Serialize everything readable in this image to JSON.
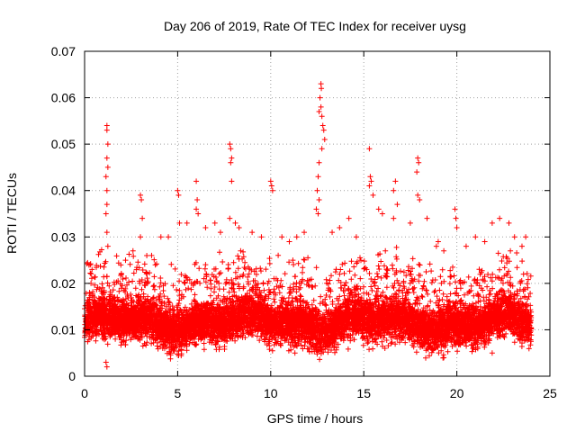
{
  "chart_data": {
    "type": "scatter",
    "title": "Day 206 of 2019, Rate Of TEC Index for receiver uysg",
    "xlabel": "GPS time / hours",
    "ylabel": "ROTI / TECUs",
    "xlim": [
      0,
      25
    ],
    "ylim": [
      0,
      0.07
    ],
    "xticks": [
      0,
      5,
      10,
      15,
      20,
      25
    ],
    "yticks": [
      0,
      0.01,
      0.02,
      0.03,
      0.04,
      0.05,
      0.06,
      0.07
    ],
    "xtick_labels": [
      "0",
      "5",
      "10",
      "15",
      "20",
      "25"
    ],
    "ytick_labels": [
      "0",
      "0.01",
      "0.02",
      "0.03",
      "0.04",
      "0.05",
      "0.06",
      "0.07"
    ],
    "grid": true,
    "marker": "+",
    "color": "#ff0000",
    "series": [
      {
        "name": "ROTI",
        "points": [
          [
            1.2,
            0.054
          ],
          [
            1.2,
            0.053
          ],
          [
            1.25,
            0.05
          ],
          [
            1.2,
            0.047
          ],
          [
            1.25,
            0.045
          ],
          [
            1.15,
            0.043
          ],
          [
            1.2,
            0.04
          ],
          [
            1.2,
            0.037
          ],
          [
            1.15,
            0.035
          ],
          [
            1.2,
            0.031
          ],
          [
            1.25,
            0.028
          ],
          [
            1.2,
            0.002
          ],
          [
            1.15,
            0.003
          ],
          [
            0.3,
            0.024
          ],
          [
            0.4,
            0.023
          ],
          [
            2.2,
            0.025
          ],
          [
            2.6,
            0.027
          ],
          [
            3.0,
            0.039
          ],
          [
            3.05,
            0.038
          ],
          [
            3.1,
            0.034
          ],
          [
            3.0,
            0.03
          ],
          [
            3.6,
            0.026
          ],
          [
            3.8,
            0.024
          ],
          [
            4.1,
            0.03
          ],
          [
            4.5,
            0.03
          ],
          [
            5.0,
            0.04
          ],
          [
            5.05,
            0.039
          ],
          [
            5.1,
            0.033
          ],
          [
            5.5,
            0.033
          ],
          [
            6.0,
            0.042
          ],
          [
            6.05,
            0.038
          ],
          [
            6.0,
            0.036
          ],
          [
            6.1,
            0.035
          ],
          [
            6.5,
            0.032
          ],
          [
            7.0,
            0.033
          ],
          [
            7.3,
            0.031
          ],
          [
            7.8,
            0.05
          ],
          [
            7.85,
            0.049
          ],
          [
            7.9,
            0.047
          ],
          [
            7.85,
            0.046
          ],
          [
            7.9,
            0.042
          ],
          [
            7.8,
            0.034
          ],
          [
            8.1,
            0.033
          ],
          [
            8.3,
            0.032
          ],
          [
            9.0,
            0.031
          ],
          [
            9.5,
            0.03
          ],
          [
            10.0,
            0.042
          ],
          [
            10.05,
            0.041
          ],
          [
            10.1,
            0.04
          ],
          [
            10.6,
            0.03
          ],
          [
            11.0,
            0.029
          ],
          [
            11.4,
            0.03
          ],
          [
            11.8,
            0.031
          ],
          [
            12.7,
            0.063
          ],
          [
            12.72,
            0.062
          ],
          [
            12.65,
            0.06
          ],
          [
            12.7,
            0.058
          ],
          [
            12.6,
            0.057
          ],
          [
            12.75,
            0.056
          ],
          [
            12.8,
            0.054
          ],
          [
            12.85,
            0.053
          ],
          [
            12.9,
            0.051
          ],
          [
            12.75,
            0.049
          ],
          [
            12.6,
            0.046
          ],
          [
            12.55,
            0.043
          ],
          [
            12.5,
            0.04
          ],
          [
            12.6,
            0.038
          ],
          [
            12.45,
            0.036
          ],
          [
            12.55,
            0.035
          ],
          [
            13.3,
            0.031
          ],
          [
            13.7,
            0.032
          ],
          [
            14.2,
            0.034
          ],
          [
            14.6,
            0.03
          ],
          [
            15.3,
            0.049
          ],
          [
            15.35,
            0.043
          ],
          [
            15.4,
            0.042
          ],
          [
            15.3,
            0.041
          ],
          [
            15.5,
            0.039
          ],
          [
            15.8,
            0.036
          ],
          [
            16.0,
            0.035
          ],
          [
            16.6,
            0.04
          ],
          [
            16.7,
            0.042
          ],
          [
            16.8,
            0.037
          ],
          [
            16.6,
            0.034
          ],
          [
            17.5,
            0.033
          ],
          [
            17.9,
            0.047
          ],
          [
            17.95,
            0.046
          ],
          [
            17.85,
            0.044
          ],
          [
            17.9,
            0.039
          ],
          [
            18.0,
            0.038
          ],
          [
            18.4,
            0.034
          ],
          [
            18.9,
            0.028
          ],
          [
            19.0,
            0.029
          ],
          [
            19.3,
            0.027
          ],
          [
            19.9,
            0.036
          ],
          [
            19.95,
            0.034
          ],
          [
            20.0,
            0.032
          ],
          [
            20.5,
            0.028
          ],
          [
            21.0,
            0.03
          ],
          [
            21.5,
            0.029
          ],
          [
            21.9,
            0.033
          ],
          [
            22.3,
            0.034
          ],
          [
            22.8,
            0.033
          ],
          [
            23.1,
            0.03
          ],
          [
            23.5,
            0.028
          ],
          [
            23.7,
            0.03
          ],
          [
            21.9,
            0.005
          ],
          [
            19.3,
            0.004
          ],
          [
            4.6,
            0.005
          ],
          [
            11.3,
            0.005
          ]
        ],
        "dense_band": {
          "x_range": [
            0,
            24
          ],
          "y_median": 0.0115,
          "y_spread_low": 0.004,
          "y_spread_high": 0.024,
          "approx_points": 9000
        }
      }
    ]
  }
}
